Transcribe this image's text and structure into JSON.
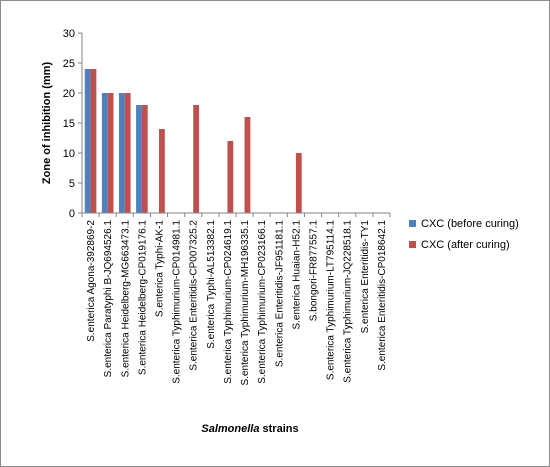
{
  "chart_data": {
    "type": "bar",
    "xlabel_italic": "Salmonella",
    "xlabel_rest": " strains",
    "ylabel": "Zone of inhibition (mm)",
    "ylim": [
      0,
      30
    ],
    "yticks": [
      0,
      5,
      10,
      15,
      20,
      25,
      30
    ],
    "grid": false,
    "legend_position": "right",
    "categories": [
      "S.enterica Agona-392869-2",
      "S.enterica Paratyphi B-JQ694526.1",
      "S.enterica Heidelberg-MG663473.1",
      "S.enterica Heidelberg-CP019176.1",
      "S.enterica Typhi-AK-1",
      "S.enterica Typhimurium-CP014981.1",
      "S.enterica Enteritidis-CP007325.2",
      "S.enterica Typhi-AL513382.1",
      "S.enterica Typhimurium-CP024619.1",
      "S.enterica Typhimurium-MH196335.1",
      "S.enterica Typhimurium-CP023166.1",
      "S.enterica Enteritidis-JF951181.1",
      "S.enterica Huaian-H52.1",
      "S.bongori-FR877557.1",
      "S.enterica Typhimurium-LT795114.1",
      "S.enterica Typhimurium-JQ228518.1",
      "S.enterica Enteritidis-TY1",
      "S.enterica Enteritidis-CP018642.1"
    ],
    "series": [
      {
        "name": "CXC (before curing)",
        "color": "#4f81bd",
        "values": [
          24,
          20,
          20,
          18,
          0,
          0,
          0,
          0,
          0,
          0,
          0,
          0,
          0,
          0,
          0,
          0,
          0,
          0
        ]
      },
      {
        "name": "CXC (after curing)",
        "color": "#c0504d",
        "values": [
          24,
          20,
          20,
          18,
          14,
          0,
          18,
          0,
          12,
          16,
          0,
          0,
          10,
          0,
          0,
          0,
          0,
          0
        ]
      }
    ]
  }
}
